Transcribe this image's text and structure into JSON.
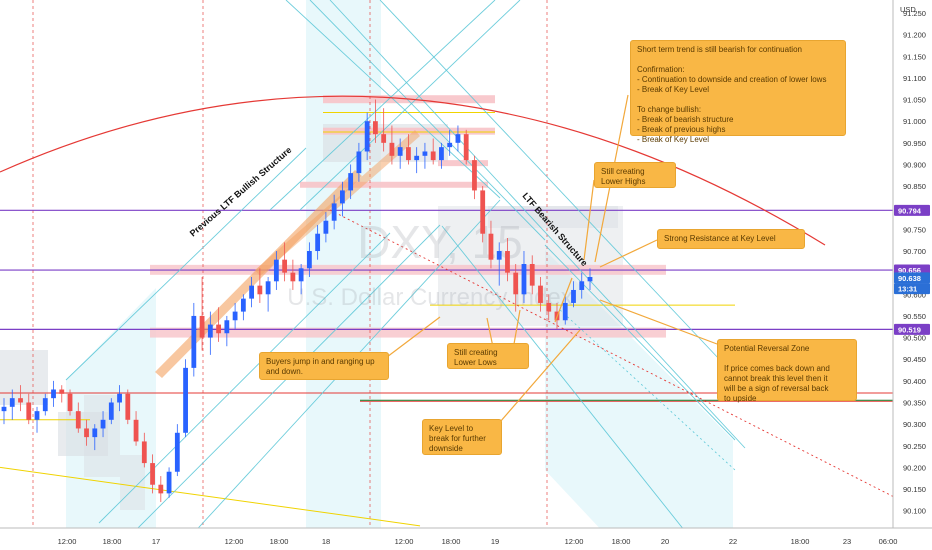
{
  "chart_data": {
    "type": "candlestick",
    "symbol_watermark": "DXY, 15",
    "name_watermark": "U.S. Dollar Currency Index",
    "currency": "USD",
    "ylim": [
      90.06,
      91.28
    ],
    "y_ticks": [
      91.25,
      91.2,
      91.15,
      91.1,
      91.05,
      91.0,
      90.95,
      90.9,
      90.85,
      90.8,
      90.75,
      90.7,
      90.65,
      90.6,
      90.55,
      90.5,
      90.45,
      90.4,
      90.35,
      90.3,
      90.25,
      90.2,
      90.15,
      90.1
    ],
    "y_tick_labels": [
      "91.250",
      "91.200",
      "91.150",
      "91.100",
      "91.050",
      "91.000",
      "90.950",
      "90.900",
      "90.850",
      "90.800",
      "90.750",
      "90.700",
      "90.650",
      "90.600",
      "90.550",
      "90.500",
      "90.450",
      "90.400",
      "90.350",
      "90.300",
      "90.250",
      "90.200",
      "90.150",
      "90.100"
    ],
    "x_tick_labels": [
      "12:00",
      "18:00",
      "17",
      "12:00",
      "18:00",
      "18",
      "12:00",
      "18:00",
      "19",
      "12:00",
      "18:00",
      "20",
      "22",
      "18:00",
      "23",
      "06:00"
    ],
    "price_badges": [
      {
        "value": 90.794,
        "label": "90.794",
        "color": "#7b3fc6"
      },
      {
        "value": 90.656,
        "label": "90.656",
        "color": "#7b3fc6"
      },
      {
        "value": 90.638,
        "label": "90.638",
        "color": "#2b6fd6"
      },
      {
        "value": 90.613,
        "label": "13:31",
        "color": "#2b6fd6"
      },
      {
        "value": 90.519,
        "label": "90.519",
        "color": "#7b3fc6"
      }
    ],
    "key_levels": [
      90.794,
      90.656,
      90.519,
      90.355
    ],
    "candles": [
      [
        90.33,
        90.36,
        90.3,
        90.34
      ],
      [
        90.34,
        90.38,
        90.31,
        90.36
      ],
      [
        90.36,
        90.39,
        90.33,
        90.35
      ],
      [
        90.35,
        90.37,
        90.3,
        90.31
      ],
      [
        90.31,
        90.34,
        90.28,
        90.33
      ],
      [
        90.33,
        90.37,
        90.32,
        90.36
      ],
      [
        90.36,
        90.4,
        90.34,
        90.38
      ],
      [
        90.38,
        90.39,
        90.35,
        90.37
      ],
      [
        90.37,
        90.38,
        90.32,
        90.33
      ],
      [
        90.33,
        90.35,
        90.28,
        90.29
      ],
      [
        90.29,
        90.31,
        90.25,
        90.27
      ],
      [
        90.27,
        90.3,
        90.24,
        90.29
      ],
      [
        90.29,
        90.33,
        90.27,
        90.31
      ],
      [
        90.31,
        90.36,
        90.3,
        90.35
      ],
      [
        90.35,
        90.39,
        90.33,
        90.37
      ],
      [
        90.37,
        90.38,
        90.3,
        90.31
      ],
      [
        90.31,
        90.33,
        90.25,
        90.26
      ],
      [
        90.26,
        90.28,
        90.2,
        90.21
      ],
      [
        90.21,
        90.23,
        90.14,
        90.16
      ],
      [
        90.16,
        90.18,
        90.12,
        90.14
      ],
      [
        90.14,
        90.2,
        90.13,
        90.19
      ],
      [
        90.19,
        90.3,
        90.18,
        90.28
      ],
      [
        90.28,
        90.45,
        90.27,
        90.43
      ],
      [
        90.43,
        90.58,
        90.41,
        90.55
      ],
      [
        90.55,
        90.64,
        90.47,
        90.5
      ],
      [
        90.5,
        90.56,
        90.46,
        90.53
      ],
      [
        90.53,
        90.57,
        90.49,
        90.51
      ],
      [
        90.51,
        90.55,
        90.48,
        90.54
      ],
      [
        90.54,
        90.58,
        90.52,
        90.56
      ],
      [
        90.56,
        90.6,
        90.54,
        90.59
      ],
      [
        90.59,
        90.64,
        90.57,
        90.62
      ],
      [
        90.62,
        90.66,
        90.58,
        90.6
      ],
      [
        90.6,
        90.64,
        90.56,
        90.63
      ],
      [
        90.63,
        90.7,
        90.61,
        90.68
      ],
      [
        90.68,
        90.72,
        90.63,
        90.65
      ],
      [
        90.65,
        90.68,
        90.61,
        90.63
      ],
      [
        90.63,
        90.67,
        90.6,
        90.66
      ],
      [
        90.66,
        90.72,
        90.64,
        90.7
      ],
      [
        90.7,
        90.76,
        90.68,
        90.74
      ],
      [
        90.74,
        90.79,
        90.72,
        90.77
      ],
      [
        90.77,
        90.83,
        90.75,
        90.81
      ],
      [
        90.81,
        90.86,
        90.78,
        90.84
      ],
      [
        90.84,
        90.9,
        90.82,
        90.88
      ],
      [
        90.88,
        90.95,
        90.86,
        90.93
      ],
      [
        90.93,
        91.02,
        90.91,
        91.0
      ],
      [
        91.0,
        91.05,
        90.95,
        90.97
      ],
      [
        90.97,
        91.03,
        90.93,
        90.95
      ],
      [
        90.95,
        90.99,
        90.9,
        90.92
      ],
      [
        90.92,
        90.96,
        90.89,
        90.94
      ],
      [
        90.94,
        90.97,
        90.9,
        90.91
      ],
      [
        90.91,
        90.94,
        90.88,
        90.92
      ],
      [
        90.92,
        90.95,
        90.89,
        90.93
      ],
      [
        90.93,
        90.96,
        90.9,
        90.91
      ],
      [
        90.91,
        90.95,
        90.89,
        90.94
      ],
      [
        90.94,
        90.98,
        90.92,
        90.95
      ],
      [
        90.95,
        90.99,
        90.93,
        90.97
      ],
      [
        90.97,
        90.98,
        90.9,
        90.91
      ],
      [
        90.91,
        90.92,
        90.82,
        90.84
      ],
      [
        90.84,
        90.85,
        90.72,
        90.74
      ],
      [
        90.74,
        90.77,
        90.66,
        90.68
      ],
      [
        90.68,
        90.72,
        90.62,
        90.7
      ],
      [
        90.7,
        90.73,
        90.63,
        90.65
      ],
      [
        90.65,
        90.67,
        90.56,
        90.6
      ],
      [
        90.6,
        90.7,
        90.58,
        90.67
      ],
      [
        90.67,
        90.69,
        90.6,
        90.62
      ],
      [
        90.62,
        90.64,
        90.56,
        90.58
      ],
      [
        90.58,
        90.6,
        90.54,
        90.56
      ],
      [
        90.56,
        90.58,
        90.52,
        90.54
      ],
      [
        90.54,
        90.6,
        90.53,
        90.58
      ],
      [
        90.58,
        90.63,
        90.57,
        90.61
      ],
      [
        90.61,
        90.65,
        90.59,
        90.63
      ],
      [
        90.63,
        90.66,
        90.61,
        90.64
      ]
    ]
  },
  "header": {
    "currency_label": "USD"
  },
  "watermark": {
    "symbol": "DXY, 15",
    "name": "U.S. Dollar Currency Index"
  },
  "annotations": {
    "previous_structure": "Previous LTF Bullish Structure",
    "bearish_structure": "LTF Bearish Structure",
    "short_term_note": "Short term trend is still bearish for continuation\n\nConfirmation:\n  - Continuation to downside and creation of lower lows\n  - Break of Key Level\n\nTo change bullish:\n  - Break of bearish structure\n  - Break of previous highs\n  - Break of Key Level",
    "lower_highs_note": "Still creating\nLower Highs",
    "resistance_note": "Strong Resistance at Key Level",
    "buyers_note": "Buyers jump in and ranging up\nand down.",
    "lower_lows_note": "Still creating\nLower Lows",
    "reversal_note": "Potential Reversal Zone\n\nIf price comes back down and\ncannot break this level then it\nwill be a sign of reversal back\nto upside",
    "key_level_note": "Key Level to\nbreak for further\ndownside"
  },
  "colors": {
    "bull_candle": "#2962ff",
    "bear_candle": "#ef5350",
    "key_level_purple": "#7b3fc6",
    "resistance_zone": "#f7c3c8",
    "channel": "#5ec8d8",
    "arc": "#e53935",
    "note_bg": "#f9b745"
  }
}
